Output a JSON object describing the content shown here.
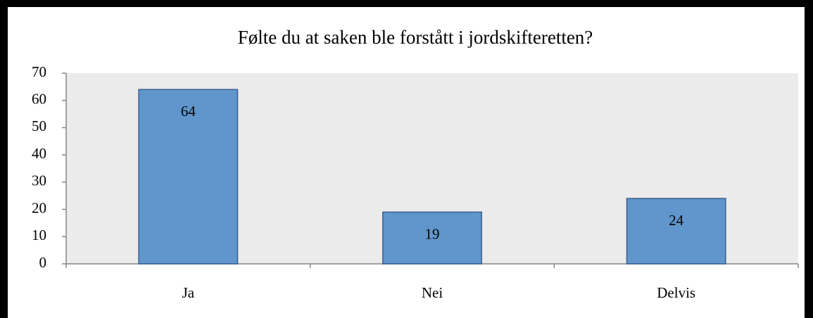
{
  "chart_data": {
    "type": "bar",
    "title": "Følte du at saken ble forstått i jordskifteretten?",
    "categories": [
      "Ja",
      "Nei",
      "Delvis"
    ],
    "values": [
      64,
      19,
      24
    ],
    "color": "#6096cb",
    "ylim": [
      0,
      70
    ],
    "yticks": [
      0,
      10,
      20,
      30,
      40,
      50,
      60,
      70
    ],
    "grid": false
  }
}
